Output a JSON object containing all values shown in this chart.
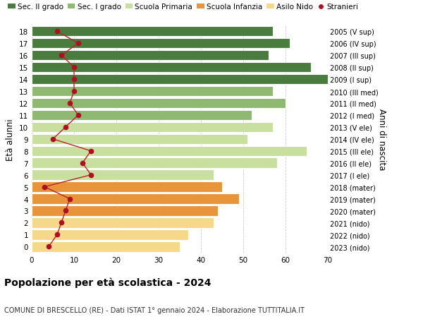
{
  "ages": [
    0,
    1,
    2,
    3,
    4,
    5,
    6,
    7,
    8,
    9,
    10,
    11,
    12,
    13,
    14,
    15,
    16,
    17,
    18
  ],
  "bar_values": [
    35,
    37,
    43,
    44,
    49,
    45,
    43,
    58,
    65,
    51,
    57,
    52,
    60,
    57,
    70,
    66,
    56,
    61,
    57
  ],
  "stranieri": [
    4,
    6,
    7,
    8,
    9,
    3,
    14,
    12,
    14,
    5,
    8,
    11,
    9,
    10,
    10,
    10,
    7,
    11,
    6
  ],
  "right_labels": [
    "2023 (nido)",
    "2022 (nido)",
    "2021 (nido)",
    "2020 (mater)",
    "2019 (mater)",
    "2018 (mater)",
    "2017 (I ele)",
    "2016 (II ele)",
    "2015 (III ele)",
    "2014 (IV ele)",
    "2013 (V ele)",
    "2012 (I med)",
    "2011 (II med)",
    "2010 (III med)",
    "2009 (I sup)",
    "2008 (II sup)",
    "2007 (III sup)",
    "2006 (IV sup)",
    "2005 (V sup)"
  ],
  "bar_colors": [
    "#f5d88a",
    "#f5d88a",
    "#f5d88a",
    "#e8943a",
    "#e8943a",
    "#e8943a",
    "#c8dfa0",
    "#c8dfa0",
    "#c8dfa0",
    "#c8dfa0",
    "#c8dfa0",
    "#8fb870",
    "#8fb870",
    "#8fb870",
    "#4a7c3f",
    "#4a7c3f",
    "#4a7c3f",
    "#4a7c3f",
    "#4a7c3f"
  ],
  "legend_labels": [
    "Sec. II grado",
    "Sec. I grado",
    "Scuola Primaria",
    "Scuola Infanzia",
    "Asilo Nido",
    "Stranieri"
  ],
  "legend_colors": [
    "#4a7c3f",
    "#8fb870",
    "#c8dfa0",
    "#e8943a",
    "#f5d88a",
    "#aa1122"
  ],
  "ylabel": "Età alunni",
  "right_ylabel": "Anni di nascita",
  "title": "Popolazione per età scolastica - 2024",
  "subtitle": "COMUNE DI BRESCELLO (RE) - Dati ISTAT 1° gennaio 2024 - Elaborazione TUTTITALIA.IT",
  "xlim": [
    0,
    70
  ],
  "xticks": [
    0,
    10,
    20,
    30,
    40,
    50,
    60,
    70
  ],
  "stranieri_color": "#aa1122",
  "stranieri_line_color": "#bb2222",
  "background_color": "#ffffff"
}
